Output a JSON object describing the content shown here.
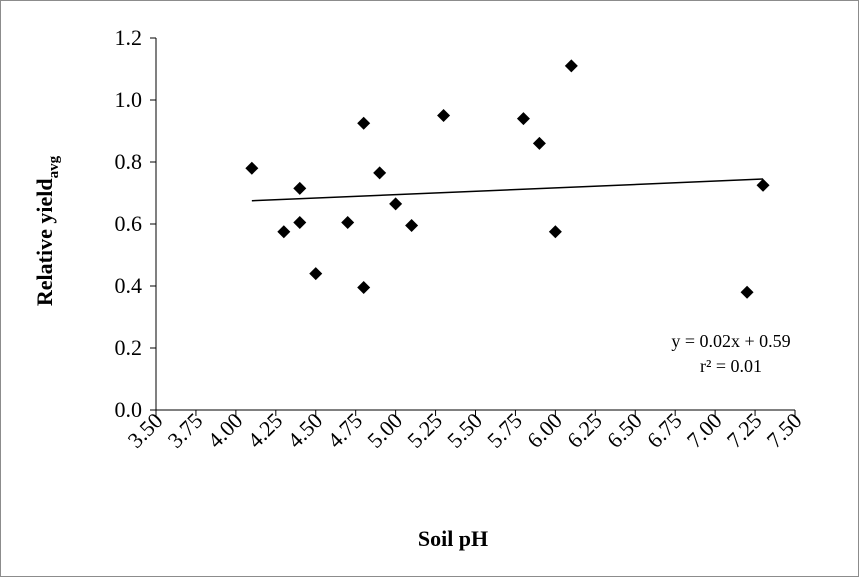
{
  "chart_data": {
    "type": "scatter",
    "title": "",
    "xlabel": "Soil pH",
    "ylabel": "Relative yield",
    "ylabel_subscript": "avg",
    "xlim": [
      3.5,
      7.5
    ],
    "ylim": [
      0.0,
      1.2
    ],
    "x_ticks": [
      "3.50",
      "3.75",
      "4.00",
      "4.25",
      "4.50",
      "4.75",
      "5.00",
      "5.25",
      "5.50",
      "5.75",
      "6.00",
      "6.25",
      "6.50",
      "6.75",
      "7.00",
      "7.25",
      "7.50"
    ],
    "y_ticks": [
      "0.0",
      "0.2",
      "0.4",
      "0.6",
      "0.8",
      "1.0",
      "1.2"
    ],
    "grid": false,
    "marker": "diamond",
    "marker_color": "#000000",
    "points": [
      {
        "x": 4.1,
        "y": 0.78
      },
      {
        "x": 4.3,
        "y": 0.575
      },
      {
        "x": 4.4,
        "y": 0.715
      },
      {
        "x": 4.4,
        "y": 0.605
      },
      {
        "x": 4.5,
        "y": 0.44
      },
      {
        "x": 4.7,
        "y": 0.605
      },
      {
        "x": 4.8,
        "y": 0.925
      },
      {
        "x": 4.8,
        "y": 0.395
      },
      {
        "x": 4.9,
        "y": 0.765
      },
      {
        "x": 5.0,
        "y": 0.665
      },
      {
        "x": 5.1,
        "y": 0.595
      },
      {
        "x": 5.3,
        "y": 0.95
      },
      {
        "x": 5.8,
        "y": 0.94
      },
      {
        "x": 5.9,
        "y": 0.86
      },
      {
        "x": 6.0,
        "y": 0.575
      },
      {
        "x": 6.1,
        "y": 1.11
      },
      {
        "x": 7.2,
        "y": 0.38
      },
      {
        "x": 7.3,
        "y": 0.725
      }
    ],
    "trendline": {
      "x_start": 4.1,
      "y_start": 0.675,
      "x_end": 7.3,
      "y_end": 0.745
    },
    "annotations": [
      "y = 0.02x + 0.59",
      "r² = 0.01"
    ]
  }
}
